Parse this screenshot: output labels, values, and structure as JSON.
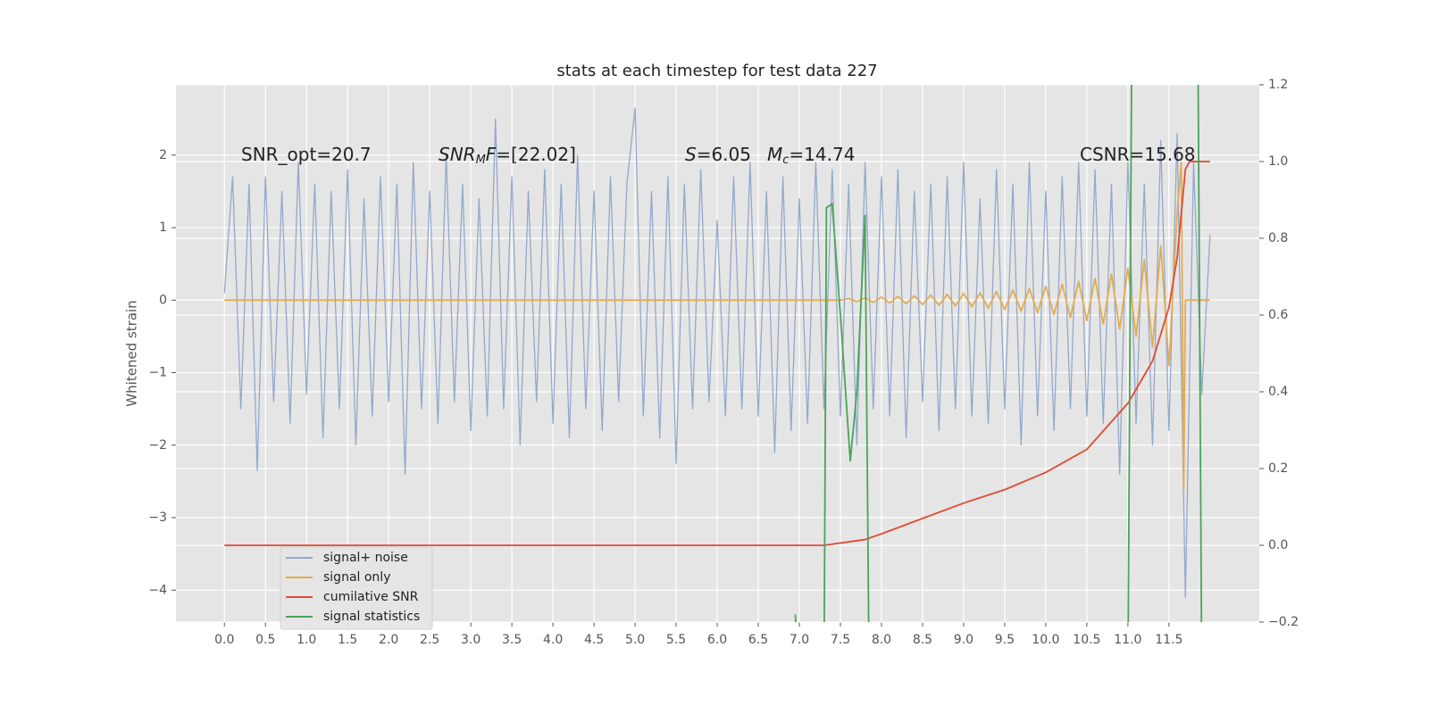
{
  "chart_data": {
    "type": "line",
    "title": "stats at each timestep for test data 227",
    "ylabel": "Whitened strain",
    "grid": true,
    "legend": "lower left",
    "xlim": [
      -0.59,
      12.6
    ],
    "ylim": [
      -4.44,
      2.97
    ],
    "y2lim": [
      -0.2,
      1.2
    ],
    "xticks": [
      {
        "value": 0,
        "label": "0.0"
      },
      0.5,
      {
        "value": 1,
        "label": "1.0"
      },
      1.5,
      {
        "value": 2,
        "label": "2.0"
      },
      2.5,
      {
        "value": 3,
        "label": "3.0"
      },
      3.5,
      {
        "value": 4,
        "label": "4.0"
      },
      4.5,
      {
        "value": 5,
        "label": "5.0"
      },
      5.5,
      {
        "value": 6,
        "label": "6.0"
      },
      6.5,
      {
        "value": 7,
        "label": "7.0"
      },
      7.5,
      {
        "value": 8,
        "label": "8.0"
      },
      8.5,
      {
        "value": 9,
        "label": "9.0"
      },
      9.5,
      {
        "value": 10,
        "label": "10.0"
      },
      10.5,
      {
        "value": 11,
        "label": "11.0"
      },
      11.5
    ],
    "yticks": [
      {
        "value": -4,
        "label": "−4"
      },
      {
        "value": -3,
        "label": "−3"
      },
      {
        "value": -2,
        "label": "−2"
      },
      {
        "value": -1,
        "label": "−1"
      },
      0,
      1,
      2
    ],
    "y2ticks": [
      {
        "value": -0.2,
        "label": "−0.2"
      },
      {
        "value": 0,
        "label": "0.0"
      },
      0.2,
      0.4,
      0.6,
      0.8,
      {
        "value": 1,
        "label": "1.0"
      },
      1.2
    ],
    "annotations": [
      {
        "parts": [
          {
            "text": "SNR_opt=20.7"
          }
        ]
      },
      {
        "parts": [
          {
            "text": "SNR",
            "style": "italic"
          },
          {
            "text": "M",
            "style": "sub"
          },
          {
            "text": "F",
            "style": "italic"
          },
          {
            "text": "=[22.02]"
          }
        ]
      },
      {
        "parts": [
          {
            "text": "S",
            "style": "italic"
          },
          {
            "text": "=6.05"
          }
        ]
      },
      {
        "parts": [
          {
            "text": "M",
            "style": "italic"
          },
          {
            "text": "c",
            "style": "sub"
          },
          {
            "text": "=14.74"
          }
        ]
      },
      {
        "parts": [
          {
            "text": "CSNR=15.68"
          }
        ]
      }
    ],
    "series": [
      {
        "name": "signal+ noise",
        "color": "#94a8cc",
        "x": [
          0,
          0.1,
          0.2,
          0.3,
          0.4,
          0.5,
          0.6,
          0.7,
          0.8,
          0.9,
          1,
          1.1,
          1.2,
          1.3,
          1.4,
          1.5,
          1.6,
          1.7,
          1.8,
          1.9,
          2,
          2.1,
          2.2,
          2.3,
          2.4,
          2.5,
          2.6,
          2.7,
          2.8,
          2.9,
          3,
          3.1,
          3.2,
          3.3,
          3.4,
          3.5,
          3.6,
          3.7,
          3.8,
          3.9,
          4,
          4.1,
          4.2,
          4.3,
          4.4,
          4.5,
          4.6,
          4.7,
          4.8,
          4.9,
          5,
          5.1,
          5.2,
          5.3,
          5.4,
          5.5,
          5.6,
          5.7,
          5.8,
          5.9,
          6,
          6.1,
          6.2,
          6.3,
          6.4,
          6.5,
          6.6,
          6.7,
          6.8,
          6.9,
          7,
          7.1,
          7.2,
          7.3,
          7.4,
          7.5,
          7.6,
          7.7,
          7.8,
          7.9,
          8,
          8.1,
          8.2,
          8.3,
          8.4,
          8.5,
          8.6,
          8.7,
          8.8,
          8.9,
          9,
          9.1,
          9.2,
          9.3,
          9.4,
          9.5,
          9.6,
          9.7,
          9.8,
          9.9,
          10,
          10.1,
          10.2,
          10.3,
          10.4,
          10.5,
          10.6,
          10.7,
          10.8,
          10.9,
          11,
          11.1,
          11.2,
          11.3,
          11.4,
          11.5,
          11.6,
          11.7,
          11.8,
          11.9,
          12
        ],
        "values": [
          0.1,
          1.7,
          -1.5,
          1.6,
          -2.35,
          1.7,
          -1.4,
          1.5,
          -1.7,
          1.9,
          -1.3,
          1.6,
          -1.9,
          1.5,
          -1.5,
          1.8,
          -2.0,
          1.4,
          -1.6,
          1.7,
          -1.4,
          1.6,
          -2.4,
          1.9,
          -1.5,
          1.5,
          -1.7,
          2.0,
          -1.4,
          1.6,
          -1.8,
          1.4,
          -1.6,
          2.5,
          -1.5,
          1.7,
          -2.0,
          1.5,
          -1.4,
          1.8,
          -1.7,
          1.6,
          -1.9,
          2.0,
          -1.5,
          1.5,
          -1.8,
          1.7,
          -1.4,
          1.6,
          2.65,
          -1.6,
          1.5,
          -1.9,
          1.7,
          -2.25,
          1.6,
          -1.5,
          1.8,
          -1.4,
          1.1,
          -1.6,
          1.7,
          -1.5,
          1.9,
          -1.6,
          1.5,
          -2.1,
          1.7,
          -1.8,
          1.4,
          -1.7,
          1.9,
          -1.5,
          1.8,
          -1.6,
          1.6,
          -2.0,
          1.9,
          -1.5,
          1.7,
          -1.6,
          1.8,
          -1.9,
          1.5,
          -1.4,
          1.6,
          -1.8,
          1.7,
          -1.5,
          1.9,
          -1.6,
          1.4,
          -1.7,
          1.8,
          -1.5,
          1.6,
          -2.0,
          1.9,
          -1.6,
          1.5,
          -1.8,
          1.7,
          -1.5,
          1.9,
          -1.6,
          1.8,
          -1.7,
          1.6,
          -2.4,
          1.9,
          -1.7,
          1.6,
          -2.0,
          2.2,
          -1.8,
          2.3,
          -4.1,
          1.9,
          -1.3,
          0.9
        ]
      },
      {
        "name": "signal only",
        "color": "#e2ac52",
        "x": [
          0,
          7.5,
          7.6,
          7.7,
          7.8,
          7.9,
          8,
          8.1,
          8.2,
          8.3,
          8.4,
          8.5,
          8.6,
          8.7,
          8.8,
          8.9,
          9,
          9.1,
          9.2,
          9.3,
          9.4,
          9.5,
          9.6,
          9.7,
          9.8,
          9.9,
          10,
          10.1,
          10.2,
          10.3,
          10.4,
          10.5,
          10.6,
          10.7,
          10.8,
          10.9,
          11,
          11.1,
          11.2,
          11.3,
          11.4,
          11.5,
          11.6,
          11.65,
          11.68,
          11.7,
          12
        ],
        "values": [
          0,
          0,
          0.02,
          -0.02,
          0.03,
          -0.03,
          0.04,
          -0.04,
          0.05,
          -0.05,
          0.06,
          -0.06,
          0.07,
          -0.07,
          0.08,
          -0.08,
          0.09,
          -0.09,
          0.1,
          -0.11,
          0.12,
          -0.13,
          0.14,
          -0.15,
          0.16,
          -0.17,
          0.19,
          -0.2,
          0.22,
          -0.24,
          0.26,
          -0.28,
          0.3,
          -0.33,
          0.36,
          -0.4,
          0.44,
          -0.5,
          0.56,
          -0.65,
          0.75,
          -0.9,
          1.2,
          1.9,
          -2.6,
          0,
          0
        ]
      },
      {
        "name": "cumilative SNR",
        "color": "#e24a33",
        "axis": "y2",
        "x": [
          0,
          7.3,
          7.8,
          8,
          8.5,
          9,
          9.5,
          10,
          10.5,
          11,
          11.3,
          11.5,
          11.6,
          11.7,
          11.75,
          12
        ],
        "values": [
          0,
          0,
          0.015,
          0.03,
          0.07,
          0.11,
          0.145,
          0.19,
          0.25,
          0.37,
          0.48,
          0.62,
          0.75,
          0.98,
          1.0,
          1.0
        ]
      },
      {
        "name": "signal statistics",
        "color": "#4aa35a",
        "axis": "y2",
        "x": [
          6.95,
          7.0,
          7.3,
          7.33,
          7.4,
          7.5,
          7.62,
          7.7,
          7.8,
          7.85,
          11.0,
          11.05,
          11.85,
          11.9
        ],
        "values": [
          -0.18,
          -0.35,
          -0.35,
          0.88,
          0.89,
          0.6,
          0.22,
          0.4,
          0.86,
          -0.35,
          -0.35,
          1.4,
          1.4,
          -0.35
        ]
      }
    ]
  }
}
